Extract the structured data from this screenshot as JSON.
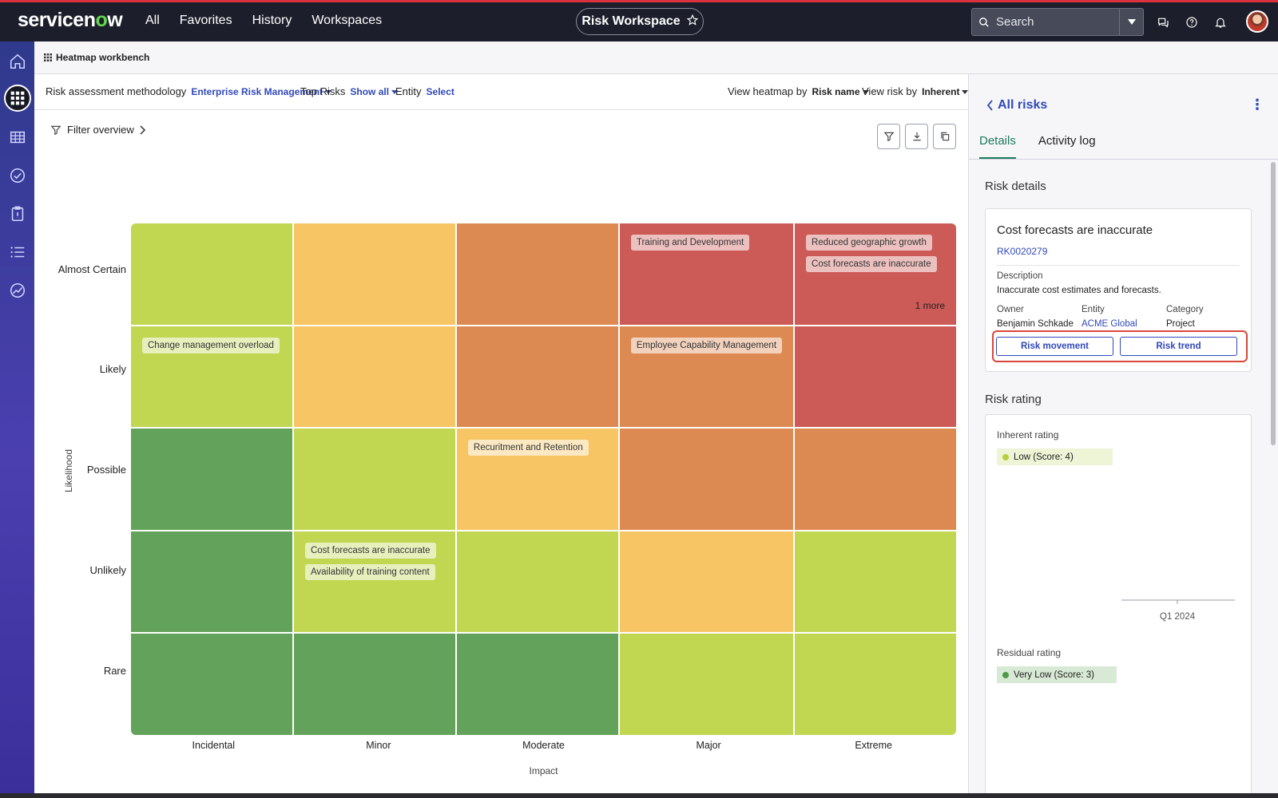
{
  "brand": {
    "logo_pre": "servicen",
    "logo_o": "o",
    "logo_post": "w"
  },
  "topnav": {
    "items": [
      "All",
      "Favorites",
      "History",
      "Workspaces"
    ]
  },
  "workspace": {
    "title": "Risk Workspace"
  },
  "search": {
    "placeholder": "Search"
  },
  "breadcrumb": {
    "title": "Heatmap workbench"
  },
  "filters": {
    "methodology_label": "Risk assessment methodology",
    "methodology_value": "Enterprise Risk Management",
    "top_risks_label": "Top Risks",
    "top_risks_value": "Show all",
    "entity_label": "Entity",
    "entity_value": "Select",
    "view_heatmap_label": "View heatmap by",
    "view_heatmap_value": "Risk name",
    "view_risk_label": "View risk by",
    "view_risk_value": "Inherent"
  },
  "filter_overview": "Filter overview",
  "heatmap": {
    "y_title": "Likelihood",
    "x_title": "Impact",
    "rows": [
      "Almost Certain",
      "Likely",
      "Possible",
      "Unlikely",
      "Rare"
    ],
    "cols": [
      "Incidental",
      "Minor",
      "Moderate",
      "Major",
      "Extreme"
    ],
    "colors": {
      "red": "#cc5a57",
      "orange": "#dd8a52",
      "yellow": "#f7c563",
      "lime": "#c1d651",
      "green": "#63a25a"
    },
    "cell_colors": [
      [
        "lime",
        "yellow",
        "orange",
        "red",
        "red"
      ],
      [
        "lime",
        "yellow",
        "orange",
        "orange",
        "red"
      ],
      [
        "green",
        "lime",
        "yellow",
        "orange",
        "orange"
      ],
      [
        "green",
        "lime",
        "lime",
        "yellow",
        "lime"
      ],
      [
        "green",
        "green",
        "green",
        "lime",
        "lime"
      ]
    ],
    "cells": [
      [
        [],
        [],
        [],
        [
          "Training and Development"
        ],
        [
          "Reduced geographic growth",
          "Cost forecasts are inaccurate"
        ]
      ],
      [
        [
          "Change management overload"
        ],
        [],
        [],
        [
          "Employee Capability Management"
        ],
        []
      ],
      [
        [],
        [],
        [
          "Recuritment and Retention"
        ],
        [],
        []
      ],
      [
        [],
        [
          "Cost forecasts are inaccurate",
          "Availability of training content"
        ],
        [],
        [],
        []
      ],
      [
        [],
        [],
        [],
        [],
        []
      ]
    ],
    "more_label": "1 more"
  },
  "side": {
    "back_label": "All risks",
    "tabs": [
      "Details",
      "Activity log"
    ],
    "risk_details_title": "Risk details",
    "risk_name": "Cost forecasts are inaccurate",
    "risk_number": "RK0020279",
    "description_label": "Description",
    "description_value": "Inaccurate cost estimates and forecasts.",
    "owner_label": "Owner",
    "owner_value": "Benjamin Schkade",
    "entity_label": "Entity",
    "entity_value": "ACME Global",
    "category_label": "Category",
    "category_value": "Project",
    "risk_movement": "Risk movement",
    "risk_trend": "Risk trend",
    "risk_rating_title": "Risk rating",
    "inherent_label": "Inherent rating",
    "inherent_value": "Low (Score: 4)",
    "trend_period": "Q1 2024",
    "residual_label": "Residual rating",
    "residual_value": "Very Low (Score: 3)"
  }
}
